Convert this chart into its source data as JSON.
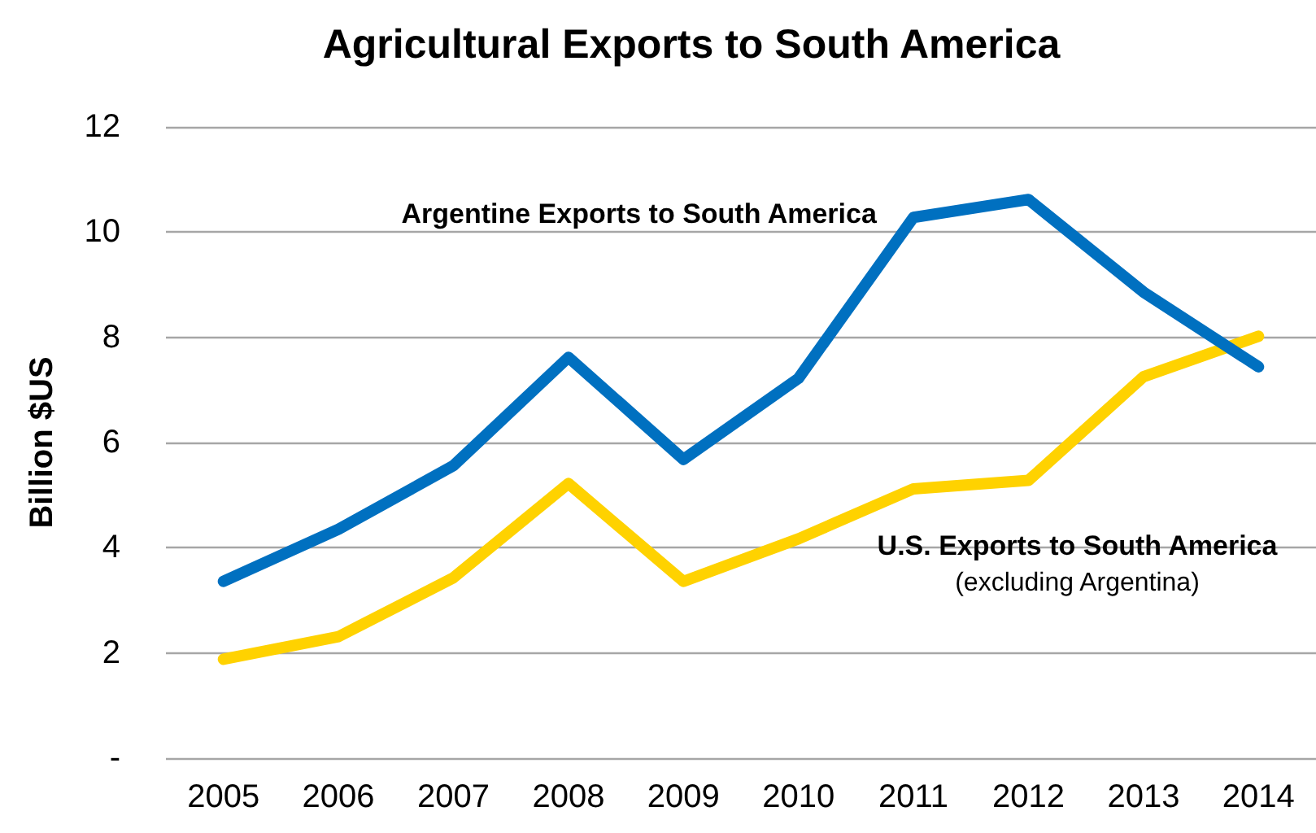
{
  "chart_data": {
    "type": "line",
    "title": "Agricultural Exports to South America",
    "ylabel": "Billion $US",
    "categories": [
      "2005",
      "2006",
      "2007",
      "2008",
      "2009",
      "2010",
      "2011",
      "2012",
      "2013",
      "2014"
    ],
    "series": [
      {
        "name": "Argentine Exports to South America",
        "color": "#0070c0",
        "values": [
          3.36,
          4.35,
          5.56,
          7.62,
          5.68,
          7.22,
          10.28,
          10.62,
          8.86,
          7.44
        ]
      },
      {
        "name": "U.S. Exports to South America\n(excluding Argentina)",
        "color": "#ffd200",
        "values": [
          1.88,
          2.31,
          3.43,
          5.22,
          3.36,
          4.17,
          5.12,
          5.28,
          7.25,
          8.02
        ]
      }
    ],
    "ylim": [
      0,
      12
    ],
    "yticks": [
      {
        "value": 0,
        "label": "-"
      },
      2,
      4,
      6,
      8,
      10,
      12
    ],
    "grid": "y",
    "legend": false,
    "marker": "none",
    "line_style": "solid"
  }
}
